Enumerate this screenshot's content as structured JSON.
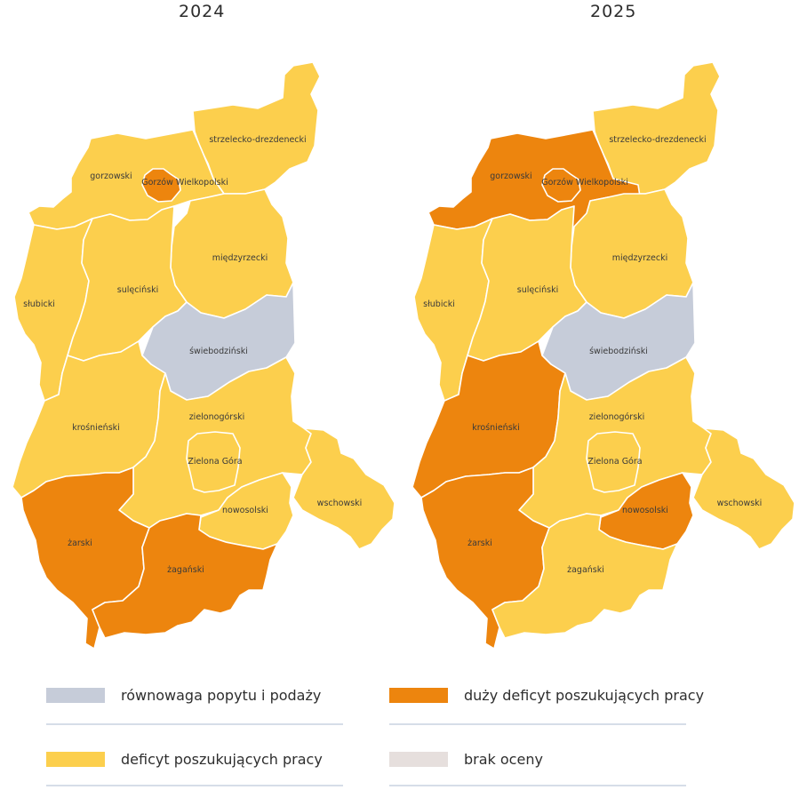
{
  "years": [
    "2024",
    "2025"
  ],
  "colors": {
    "rownowaga": "#c6ccd9",
    "deficyt": "#fccf4d",
    "duzy_deficyt": "#ed850e",
    "brak": "#e6dfdd"
  },
  "legend": [
    {
      "key": "rownowaga",
      "label": "równowaga popytu i podaży"
    },
    {
      "key": "duzy_deficyt",
      "label": "duży deficyt poszukujących pracy"
    },
    {
      "key": "deficyt",
      "label": "deficyt poszukujących pracy"
    },
    {
      "key": "brak",
      "label": "brak oceny"
    }
  ],
  "regions": [
    {
      "id": "strzelecko",
      "label": "strzelecko-drezdenecki",
      "status_2024": "deficyt",
      "status_2025": "deficyt"
    },
    {
      "id": "gorzowski",
      "label": "gorzowski",
      "status_2024": "deficyt",
      "status_2025": "duzy_deficyt"
    },
    {
      "id": "gorzow",
      "label": "Gorzów Wielkopolski",
      "status_2024": "duzy_deficyt",
      "status_2025": "duzy_deficyt"
    },
    {
      "id": "miedzyrzecki",
      "label": "międzyrzecki",
      "status_2024": "deficyt",
      "status_2025": "deficyt"
    },
    {
      "id": "slubicki",
      "label": "słubicki",
      "status_2024": "deficyt",
      "status_2025": "deficyt"
    },
    {
      "id": "sulecinski",
      "label": "sulęciński",
      "status_2024": "deficyt",
      "status_2025": "deficyt"
    },
    {
      "id": "swiebodzinski",
      "label": "świebodziński",
      "status_2024": "rownowaga",
      "status_2025": "rownowaga"
    },
    {
      "id": "krosnienski",
      "label": "krośnieński",
      "status_2024": "deficyt",
      "status_2025": "duzy_deficyt"
    },
    {
      "id": "zielonogorski",
      "label": "zielonogórski",
      "status_2024": "deficyt",
      "status_2025": "deficyt"
    },
    {
      "id": "zielonagora",
      "label": "Zielona Góra",
      "status_2024": "deficyt",
      "status_2025": "deficyt"
    },
    {
      "id": "nowosolski",
      "label": "nowosolski",
      "status_2024": "deficyt",
      "status_2025": "duzy_deficyt"
    },
    {
      "id": "wschowski",
      "label": "wschowski",
      "status_2024": "deficyt",
      "status_2025": "deficyt"
    },
    {
      "id": "zarski",
      "label": "żarski",
      "status_2024": "duzy_deficyt",
      "status_2025": "duzy_deficyt"
    },
    {
      "id": "zaganski",
      "label": "żagański",
      "status_2024": "duzy_deficyt",
      "status_2025": "deficyt"
    }
  ]
}
